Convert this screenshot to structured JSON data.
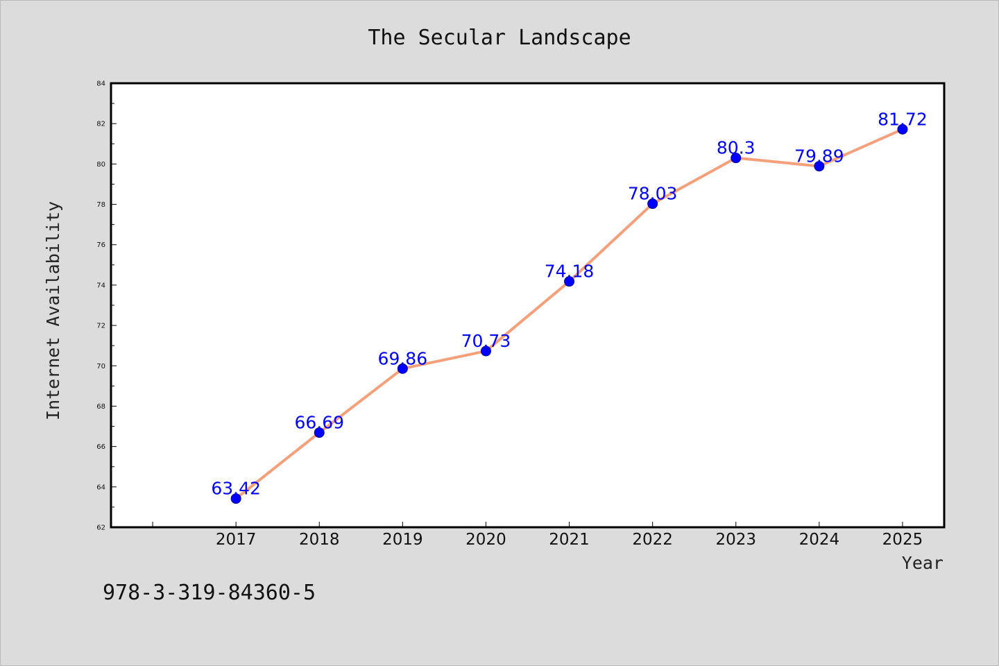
{
  "chart_data": {
    "type": "line",
    "title": "The Secular Landscape",
    "xlabel": "Year",
    "ylabel": "Internet Availability",
    "x": [
      "2017",
      "2018",
      "2019",
      "2020",
      "2021",
      "2022",
      "2023",
      "2024",
      "2025"
    ],
    "series": [
      {
        "values": [
          63.42,
          66.69,
          69.86,
          70.73,
          74.18,
          78.03,
          80.3,
          79.89,
          81.72
        ],
        "data_labels": [
          "63.42",
          "66.69",
          "69.86",
          "70.73",
          "74.18",
          "78.03",
          "80.3",
          "79.89",
          "81.72"
        ],
        "line_color": "#f4a07a",
        "marker_color": "#0000ff"
      }
    ],
    "ylim": [
      62,
      84
    ],
    "yticks": [
      "62",
      "64",
      "66",
      "68",
      "70",
      "72",
      "74",
      "76",
      "78",
      "80",
      "82",
      "84"
    ],
    "xlim": [
      2015.5,
      2025.5
    ],
    "grid": false,
    "legend": "none"
  },
  "annotation": "978-3-319-84360-5",
  "colors": {
    "background": "#dcdcdc",
    "plot_area": "#ffffff",
    "data_label": "#0000ff"
  }
}
